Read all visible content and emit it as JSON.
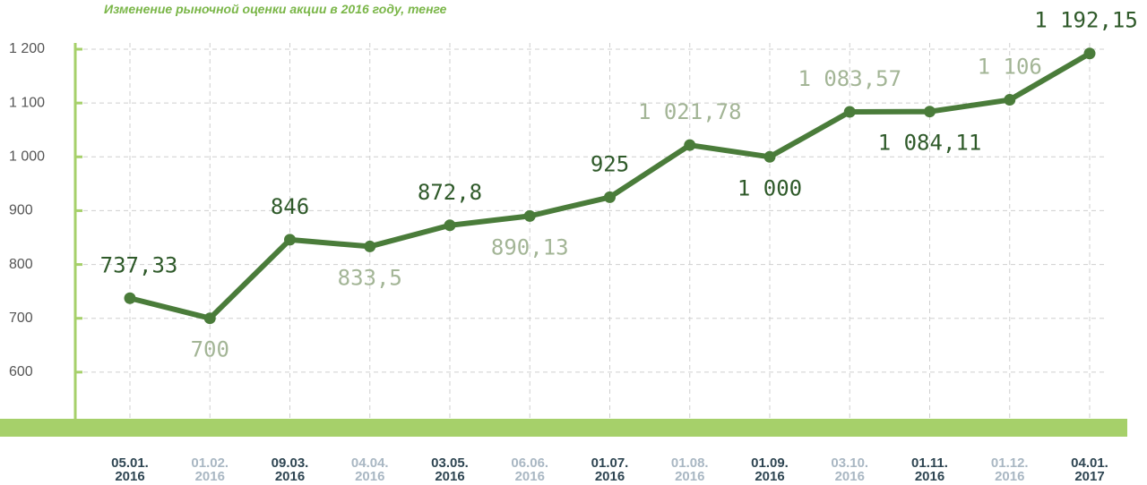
{
  "chart_data": {
    "type": "line",
    "title": "Изменение рыночной оценки акции в 2016 году, тенге",
    "categories": [
      "05.01. 2016",
      "01.02. 2016",
      "09.03. 2016",
      "04.04. 2016",
      "03.05. 2016",
      "06.06. 2016",
      "01.07. 2016",
      "01.08. 2016",
      "01.09. 2016",
      "03.10. 2016",
      "01.11. 2016",
      "01.12. 2016",
      "04.01. 2017"
    ],
    "values": [
      737.33,
      700,
      846,
      833.5,
      872.8,
      890.13,
      925,
      1021.78,
      1000,
      1083.57,
      1084.11,
      1106,
      1192.15
    ],
    "value_labels": [
      "737,33",
      "700",
      "846",
      "833,5",
      "872,8",
      "890,13",
      "925",
      "1 021,78",
      "1 000",
      "1 083,57",
      "1 084,11",
      "1 106",
      "1 192,15"
    ],
    "color": "#4a7c3a",
    "ylim": [
      500,
      1200
    ],
    "yticks": [
      600,
      700,
      800,
      900,
      {
        "value": 1000,
        "label": "1 000"
      },
      {
        "value": 1100,
        "label": "1 100"
      },
      {
        "value": 1200,
        "label": "1 200"
      }
    ],
    "grid": true
  }
}
